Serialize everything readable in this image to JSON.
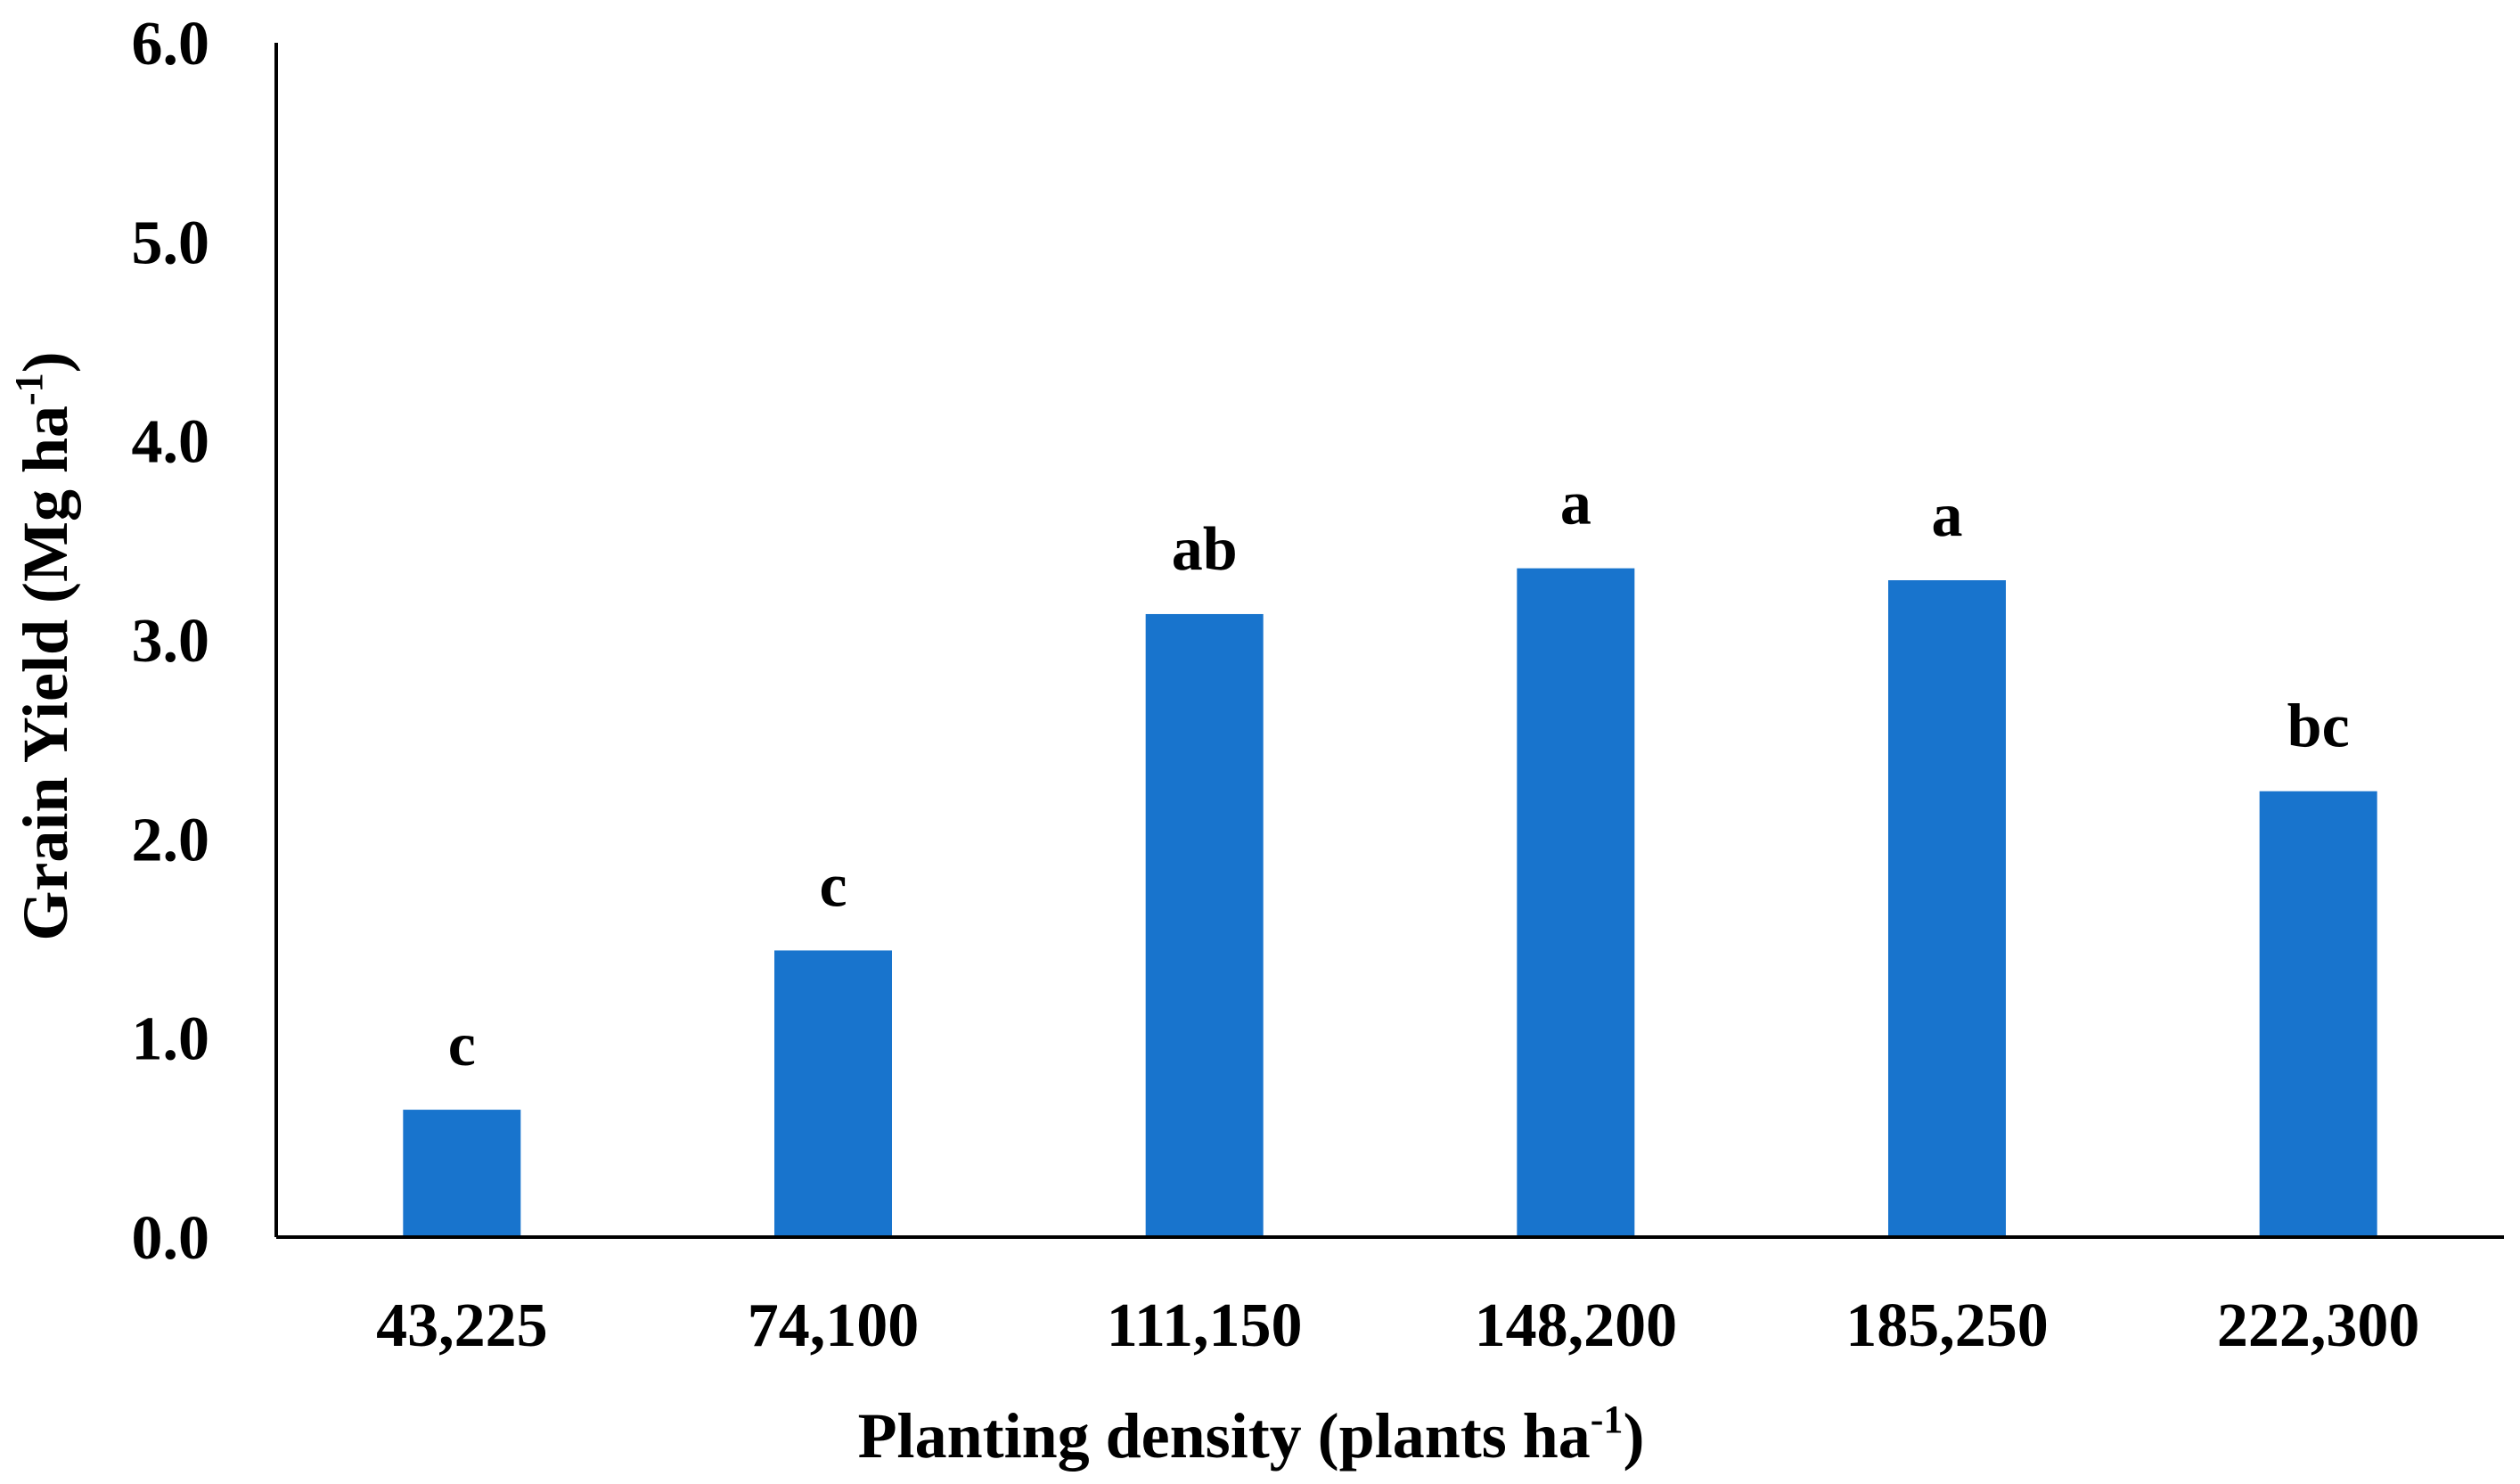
{
  "chart_data": {
    "type": "bar",
    "title": "",
    "categories": [
      "43,225",
      "74,100",
      "111,150",
      "148,200",
      "185,250",
      "222,300"
    ],
    "values": [
      0.64,
      1.44,
      3.13,
      3.36,
      3.3,
      2.24
    ],
    "data_labels": [
      "c",
      "c",
      "ab",
      "a",
      "a",
      "bc"
    ],
    "xlabel": {
      "main": "Planting density (plants ha",
      "sup": "-1",
      "close": ")"
    },
    "ylabel": {
      "main": "Grain Yield (Mg ha",
      "sup": "-1",
      "close": ")"
    },
    "ylim": [
      0.0,
      6.0
    ],
    "yticks": [
      "0.0",
      "1.0",
      "2.0",
      "3.0",
      "4.0",
      "5.0",
      "6.0"
    ],
    "grid": false,
    "legend": "none",
    "colors": {
      "bar": "#1874CD",
      "axis": "#000000"
    }
  }
}
